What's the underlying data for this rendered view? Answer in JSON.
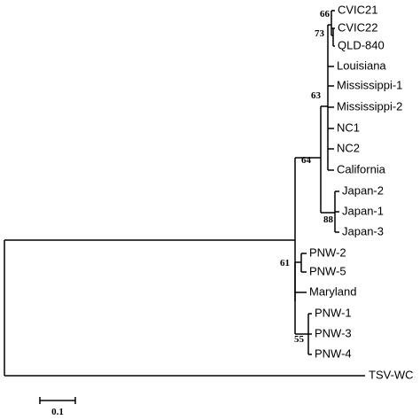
{
  "tree": {
    "leaves": [
      "CVIC21",
      "CVIC22",
      "QLD-840",
      "Louisiana",
      "Mississippi-1",
      "Mississippi-2",
      "NC1",
      "NC2",
      "California",
      "Japan-2",
      "Japan-1",
      "Japan-3",
      "PNW-2",
      "PNW-5",
      "Maryland",
      "PNW-1",
      "PNW-3",
      "PNW-4",
      "TSV-WC"
    ],
    "bootstrap": [
      66,
      73,
      63,
      64,
      88,
      61,
      55
    ],
    "scale_bar": {
      "label": "0.1"
    }
  }
}
